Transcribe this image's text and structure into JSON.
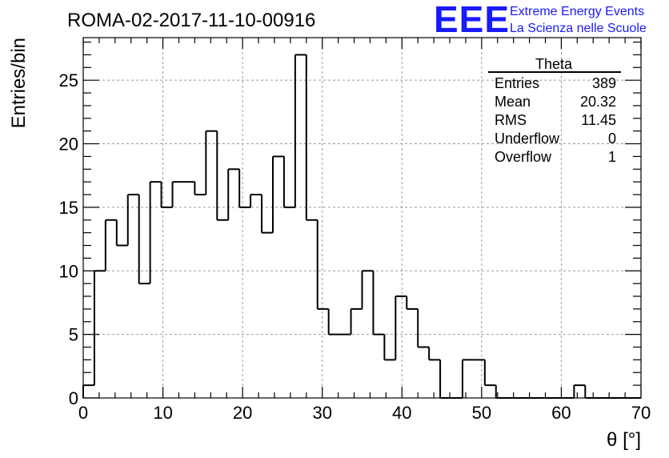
{
  "chart_data": {
    "type": "bar",
    "title": "ROMA-02-2017-11-10-00916",
    "xlabel": "θ [°]",
    "ylabel": "Entries/bin",
    "xlim": [
      0,
      70
    ],
    "ylim": [
      0,
      28.35
    ],
    "bin_width": 1.4,
    "x_ticks": [
      0,
      10,
      20,
      30,
      40,
      50,
      60,
      70
    ],
    "y_ticks": [
      0,
      5,
      10,
      15,
      20,
      25
    ],
    "grid": true,
    "values": [
      1,
      10,
      14,
      12,
      16,
      9,
      17,
      15,
      17,
      17,
      16,
      21,
      14,
      18,
      15,
      16,
      13,
      19,
      15,
      27,
      14,
      7,
      5,
      5,
      7,
      10,
      5,
      3,
      8,
      7,
      4,
      3,
      0,
      0,
      3,
      3,
      1,
      0,
      0,
      0,
      0,
      0,
      0,
      0,
      1,
      0,
      0,
      0,
      0,
      0
    ],
    "stats_box": {
      "title": "Theta",
      "rows": [
        {
          "label": "Entries",
          "value": "389"
        },
        {
          "label": "Mean",
          "value": "20.32"
        },
        {
          "label": "RMS",
          "value": "11.45"
        },
        {
          "label": "Underflow",
          "value": "0"
        },
        {
          "label": "Overflow",
          "value": "1"
        }
      ]
    }
  },
  "logo": {
    "mark": "EEE",
    "line1": "Extreme Energy Events",
    "line2": "La Scienza nelle Scuole"
  },
  "colors": {
    "line": "#000000",
    "grid": "#999999",
    "logo": "#1a1aff"
  }
}
